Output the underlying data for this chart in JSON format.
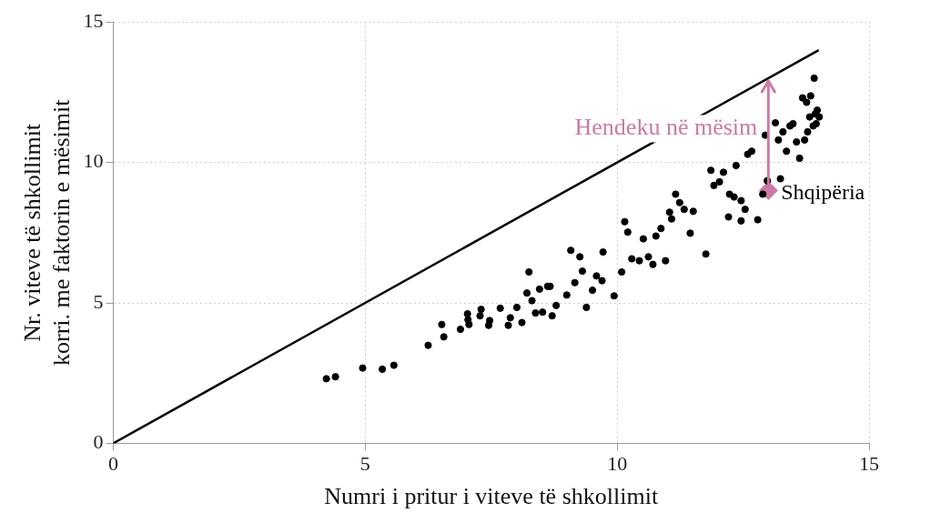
{
  "chart_data": {
    "type": "scatter",
    "xlabel": "Numri i pritur i viteve të shkollimit",
    "ylabel": "Nr. viteve të shkollimit\nkorri. me faktorin e mësimit",
    "xlim": [
      0,
      15
    ],
    "ylim": [
      0,
      15
    ],
    "xticks": [
      0,
      5,
      10,
      15
    ],
    "yticks": [
      0,
      5,
      10,
      15
    ],
    "grid": true,
    "legend": false,
    "annotations": [
      {
        "text": "Hendeku në mësim",
        "x": 13,
        "y": 11.2
      }
    ],
    "series": [
      {
        "type": "line",
        "color": "#000000",
        "marker": "none",
        "x": [
          0,
          14
        ],
        "values": [
          0,
          14
        ]
      },
      {
        "color": "#000000",
        "marker": "circle",
        "x": [
          4.23,
          4.41,
          4.95,
          5.34,
          5.57,
          6.25,
          6.52,
          6.56,
          6.89,
          7.03,
          7.04,
          7.06,
          7.28,
          7.3,
          7.45,
          7.47,
          7.68,
          7.84,
          7.88,
          8.01,
          8.11,
          8.21,
          8.25,
          8.31,
          8.38,
          8.46,
          8.52,
          8.62,
          8.67,
          8.71,
          8.79,
          9.0,
          9.08,
          9.16,
          9.26,
          9.31,
          9.39,
          9.51,
          9.59,
          9.7,
          9.72,
          9.94,
          10.09,
          10.15,
          10.21,
          10.29,
          10.44,
          10.52,
          10.62,
          10.71,
          10.77,
          10.87,
          10.96,
          11.04,
          11.08,
          11.16,
          11.24,
          11.33,
          11.45,
          11.51,
          11.76,
          11.86,
          11.92,
          12.03,
          12.11,
          12.21,
          12.23,
          12.32,
          12.36,
          12.46,
          12.46,
          12.54,
          12.59,
          12.67,
          12.79,
          12.89,
          12.94,
          12.98,
          13.14,
          13.2,
          13.24,
          13.29,
          13.36,
          13.43,
          13.49,
          13.56,
          13.62,
          13.68,
          13.72,
          13.78,
          13.76,
          13.82,
          13.89,
          13.93,
          13.95,
          13.84,
          13.97,
          14.01,
          13.91
        ],
        "values": [
          2.3,
          2.37,
          2.68,
          2.64,
          2.78,
          3.49,
          4.23,
          3.79,
          4.06,
          4.61,
          4.4,
          4.23,
          4.54,
          4.77,
          4.2,
          4.37,
          4.81,
          4.2,
          4.47,
          4.84,
          4.3,
          5.35,
          6.1,
          5.08,
          4.64,
          5.49,
          4.67,
          5.59,
          5.59,
          4.54,
          4.91,
          5.28,
          6.87,
          5.72,
          6.64,
          6.13,
          4.84,
          5.45,
          5.96,
          5.79,
          6.81,
          5.25,
          6.1,
          7.89,
          7.52,
          6.57,
          6.5,
          7.28,
          6.64,
          6.37,
          7.38,
          7.65,
          6.5,
          8.23,
          7.99,
          8.87,
          8.57,
          8.33,
          7.48,
          8.26,
          6.74,
          9.72,
          9.18,
          9.31,
          9.65,
          8.06,
          8.87,
          8.77,
          9.89,
          8.64,
          7.92,
          8.33,
          10.29,
          10.4,
          7.96,
          8.87,
          10.97,
          9.35,
          11.41,
          10.8,
          9.42,
          11.09,
          10.4,
          11.3,
          11.38,
          10.73,
          10.15,
          12.3,
          10.8,
          11.09,
          12.14,
          11.62,
          11.3,
          11.73,
          11.38,
          12.37,
          11.86,
          11.62,
          13.0
        ]
      },
      {
        "name": "Shqipëria",
        "color": "#cc79a7",
        "marker": "diamond",
        "x": [
          13
        ],
        "values": [
          9
        ]
      }
    ]
  }
}
